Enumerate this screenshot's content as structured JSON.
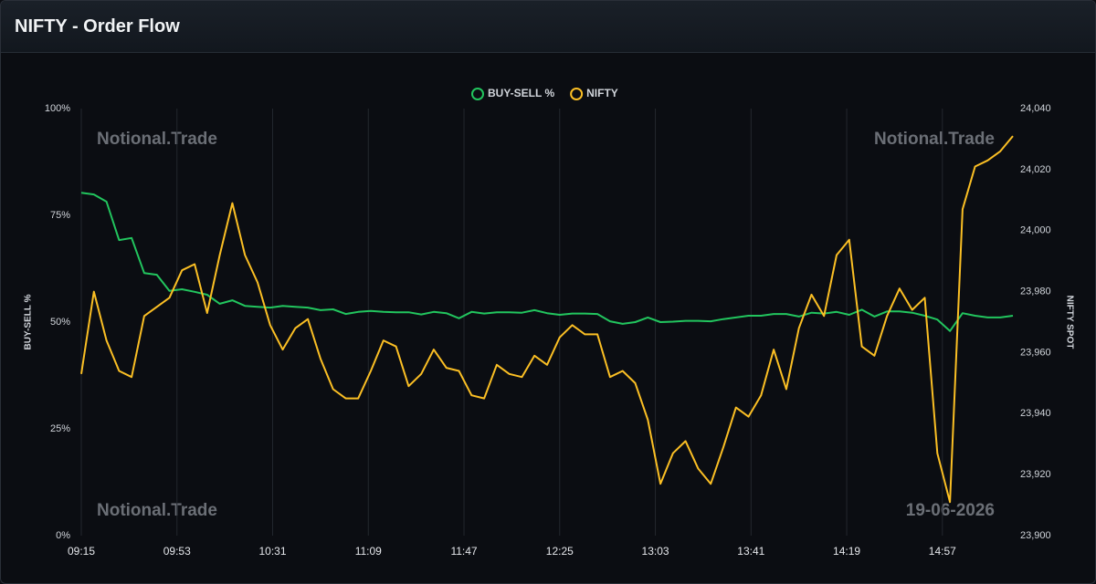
{
  "header": {
    "title": "NIFTY - Order Flow"
  },
  "chart_data": {
    "type": "line",
    "y_label": "BUY-SELL %",
    "y2_label": "NIFTY SPOT",
    "watermarks": [
      "Notional.Trade",
      "Notional.Trade",
      "Notional.Trade",
      "19-06-2026"
    ],
    "legend": "top",
    "grid": true,
    "x": [
      "09:15",
      "09:20",
      "09:25",
      "09:30",
      "09:35",
      "09:40",
      "09:45",
      "09:50",
      "09:55",
      "10:00",
      "10:05",
      "10:10",
      "10:15",
      "10:20",
      "10:25",
      "10:30",
      "10:35",
      "10:40",
      "10:45",
      "10:50",
      "10:55",
      "11:00",
      "11:05",
      "11:10",
      "11:15",
      "11:20",
      "11:25",
      "11:30",
      "11:35",
      "11:40",
      "11:45",
      "11:50",
      "11:55",
      "12:00",
      "12:05",
      "12:10",
      "12:15",
      "12:20",
      "12:25",
      "12:30",
      "12:35",
      "12:40",
      "12:45",
      "12:50",
      "12:55",
      "13:00",
      "13:05",
      "13:10",
      "13:15",
      "13:20",
      "13:25",
      "13:30",
      "13:35",
      "13:40",
      "13:45",
      "13:50",
      "13:55",
      "14:00",
      "14:05",
      "14:10",
      "14:15",
      "14:20",
      "14:25",
      "14:30",
      "14:35",
      "14:40",
      "14:45",
      "14:50",
      "14:55",
      "15:00",
      "15:05",
      "15:10",
      "15:15",
      "15:20",
      "15:25"
    ],
    "xlim": [
      "09:15",
      "15:25"
    ],
    "xticks": [
      "09:15",
      "09:53",
      "10:31",
      "11:09",
      "11:47",
      "12:25",
      "13:03",
      "13:41",
      "14:19",
      "14:57"
    ],
    "ylim": [
      0,
      100
    ],
    "yticks": [
      {
        "value": 0,
        "label": "0%"
      },
      {
        "value": 25,
        "label": "25%"
      },
      {
        "value": 50,
        "label": "50%"
      },
      {
        "value": 75,
        "label": "75%"
      },
      {
        "value": 100,
        "label": "100%"
      }
    ],
    "y2lim": [
      23900,
      24040
    ],
    "y2ticks": [
      {
        "value": 23900,
        "label": "23,900"
      },
      {
        "value": 23920,
        "label": "23,920"
      },
      {
        "value": 23940,
        "label": "23,940"
      },
      {
        "value": 23960,
        "label": "23,960"
      },
      {
        "value": 23980,
        "label": "23,980"
      },
      {
        "value": 24000,
        "label": "24,000"
      },
      {
        "value": 24020,
        "label": "24,020"
      },
      {
        "value": 24040,
        "label": "24,040"
      }
    ],
    "series": [
      {
        "name": "BUY-SELL %",
        "color": "#22c55e",
        "values": [
          80.3,
          79.9,
          78.2,
          69.2,
          69.7,
          61.5,
          61.1,
          57.3,
          57.7,
          57.1,
          56.4,
          54.3,
          55.1,
          53.8,
          53.6,
          53.4,
          53.8,
          53.6,
          53.4,
          52.8,
          53,
          51.9,
          52.4,
          52.6,
          52.4,
          52.3,
          52.3,
          51.8,
          52.4,
          52.1,
          50.9,
          52.4,
          52,
          52.3,
          52.3,
          52.2,
          52.8,
          52.1,
          51.7,
          52,
          52,
          51.9,
          50.2,
          49.6,
          50,
          51.1,
          50,
          50.1,
          50.3,
          50.3,
          50.2,
          50.7,
          51.1,
          51.5,
          51.5,
          51.9,
          51.9,
          51.3,
          52.2,
          52,
          52.4,
          51.7,
          52.9,
          51.3,
          52.5,
          52.5,
          52.2,
          51.5,
          50.6,
          47.9,
          52.1,
          51.5,
          51.1,
          51.1,
          51.5
        ]
      },
      {
        "name": "NIFTY",
        "color": "#fbbf24",
        "axis": "y2",
        "values": [
          23953,
          23980,
          23964,
          23954,
          23952,
          23972,
          23975,
          23978,
          23987,
          23989,
          23973,
          23992,
          24009,
          23992,
          23983,
          23969,
          23961,
          23968,
          23971,
          23958,
          23948,
          23945,
          23945,
          23954,
          23964,
          23962,
          23949,
          23953,
          23961,
          23955,
          23954,
          23946,
          23945,
          23956,
          23953,
          23952,
          23959,
          23956,
          23965,
          23969,
          23966,
          23966,
          23952,
          23954,
          23950,
          23938,
          23917,
          23927,
          23931,
          23922,
          23917,
          23929,
          23942,
          23939,
          23946,
          23961,
          23948,
          23968,
          23979,
          23972,
          23992,
          23997,
          23962,
          23959,
          23972,
          23981,
          23974,
          23978,
          23927,
          23911,
          24007,
          24021,
          24023,
          24026,
          24031
        ]
      }
    ]
  }
}
